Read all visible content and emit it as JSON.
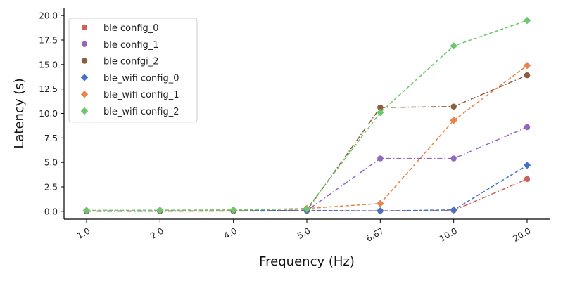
{
  "chart_data": {
    "type": "line",
    "xlabel": "Frequency (Hz)",
    "ylabel": "Latency (s)",
    "categories": [
      "1.0",
      "2.0",
      "4.0",
      "5.0",
      "6.67",
      "10.0",
      "20.0"
    ],
    "ylim": [
      -0.8,
      20.8
    ],
    "yticks": [
      "0.0",
      "2.5",
      "5.0",
      "7.5",
      "10.0",
      "12.5",
      "15.0",
      "17.5",
      "20.0"
    ],
    "legend_position": "top-left",
    "grid": false,
    "series": [
      {
        "name": "ble config_0",
        "color": "#d1615d",
        "marker": "circle",
        "linestyle": "dashdot",
        "values": [
          0.02,
          0.02,
          0.03,
          0.05,
          0.05,
          0.1,
          3.3
        ]
      },
      {
        "name": "ble config_1",
        "color": "#9467bd",
        "marker": "circle",
        "linestyle": "dashdot",
        "values": [
          0.02,
          0.03,
          0.04,
          0.08,
          5.4,
          5.4,
          8.6
        ]
      },
      {
        "name": "ble confgi_2",
        "color": "#8c5e3c",
        "marker": "circle",
        "linestyle": "dashdot",
        "values": [
          0.02,
          0.03,
          0.05,
          0.1,
          10.6,
          10.7,
          13.9
        ]
      },
      {
        "name": "ble_wifi config_0",
        "color": "#4472c4",
        "marker": "diamond",
        "linestyle": "dashed",
        "values": [
          0.05,
          0.07,
          0.08,
          0.1,
          0.05,
          0.15,
          4.7
        ]
      },
      {
        "name": "ble_wifi config_1",
        "color": "#e8834a",
        "marker": "diamond",
        "linestyle": "dashed",
        "values": [
          0.08,
          0.1,
          0.12,
          0.3,
          0.8,
          9.3,
          14.9
        ]
      },
      {
        "name": "ble_wifi config_2",
        "color": "#6cc66a",
        "marker": "diamond",
        "linestyle": "dashed",
        "values": [
          0.1,
          0.12,
          0.15,
          0.25,
          10.1,
          16.9,
          19.5
        ]
      }
    ]
  }
}
